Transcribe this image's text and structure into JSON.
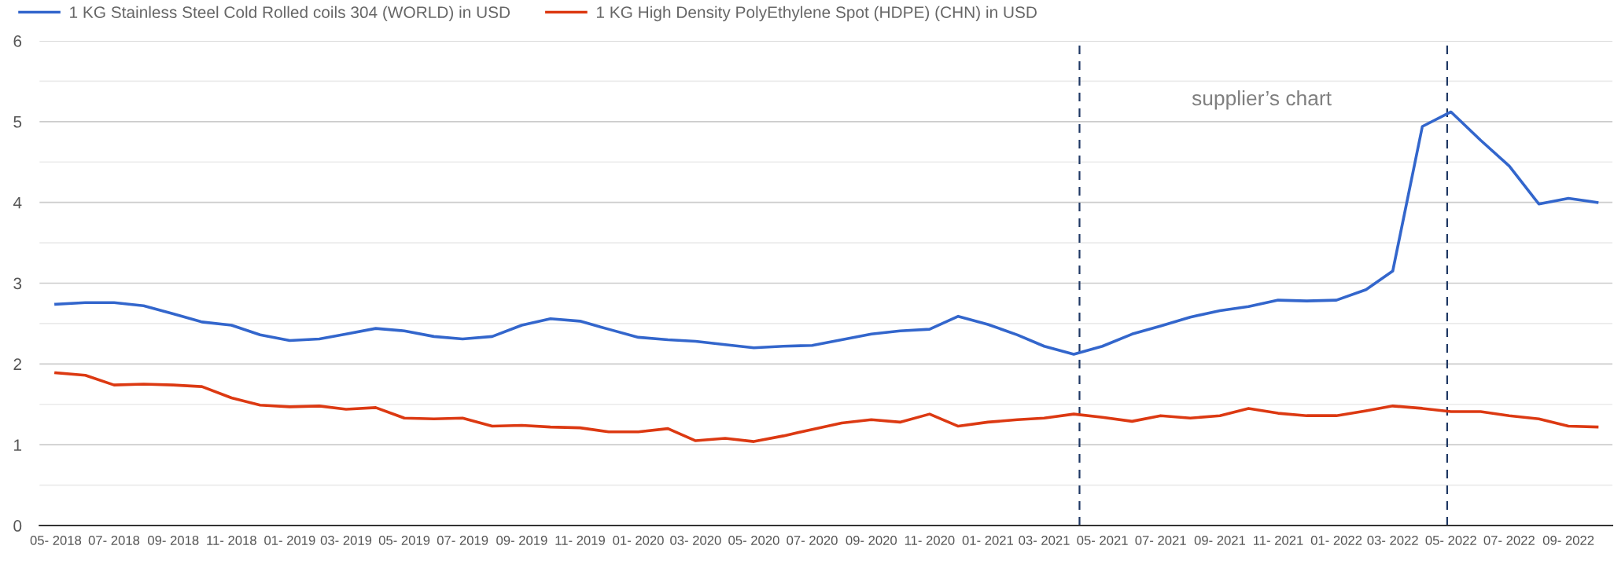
{
  "chart_data": {
    "type": "line",
    "x": [
      "2018-05",
      "2018-06",
      "2018-07",
      "2018-08",
      "2018-09",
      "2018-10",
      "2018-11",
      "2018-12",
      "2019-01",
      "2019-02",
      "2019-03",
      "2019-04",
      "2019-05",
      "2019-06",
      "2019-07",
      "2019-08",
      "2019-09",
      "2019-10",
      "2019-11",
      "2019-12",
      "2020-01",
      "2020-02",
      "2020-03",
      "2020-04",
      "2020-05",
      "2020-06",
      "2020-07",
      "2020-08",
      "2020-09",
      "2020-10",
      "2020-11",
      "2020-12",
      "2021-01",
      "2021-02",
      "2021-03",
      "2021-04",
      "2021-05",
      "2021-06",
      "2021-07",
      "2021-08",
      "2021-09",
      "2021-10",
      "2021-11",
      "2021-12",
      "2022-01",
      "2022-02",
      "2022-03",
      "2022-04",
      "2022-05",
      "2022-06",
      "2022-07",
      "2022-08",
      "2022-09",
      "2022-10"
    ],
    "series": [
      {
        "name": "1 KG Stainless Steel Cold Rolled coils 304 (WORLD) in USD",
        "color": "#3366cc",
        "values": [
          2.74,
          2.76,
          2.76,
          2.72,
          2.62,
          2.52,
          2.48,
          2.36,
          2.29,
          2.31,
          2.37,
          2.44,
          2.41,
          2.34,
          2.31,
          2.34,
          2.48,
          2.56,
          2.53,
          2.43,
          2.33,
          2.3,
          2.28,
          2.24,
          2.2,
          2.22,
          2.23,
          2.3,
          2.37,
          2.41,
          2.43,
          2.59,
          2.49,
          2.36,
          2.22,
          2.12,
          2.22,
          2.37,
          2.47,
          2.58,
          2.66,
          2.71,
          2.79,
          2.78,
          2.79,
          2.92,
          3.15,
          4.94,
          5.12,
          4.77,
          4.45,
          3.98,
          4.05,
          4.0
        ]
      },
      {
        "name": "1 KG High Density PolyEthylene Spot (HDPE) (CHN) in USD",
        "color": "#dc3912",
        "values": [
          1.89,
          1.86,
          1.74,
          1.75,
          1.74,
          1.72,
          1.58,
          1.49,
          1.47,
          1.48,
          1.44,
          1.46,
          1.33,
          1.32,
          1.33,
          1.23,
          1.24,
          1.22,
          1.21,
          1.16,
          1.16,
          1.2,
          1.05,
          1.08,
          1.04,
          1.11,
          1.19,
          1.27,
          1.31,
          1.28,
          1.38,
          1.23,
          1.28,
          1.31,
          1.33,
          1.38,
          1.34,
          1.29,
          1.36,
          1.33,
          1.36,
          1.45,
          1.39,
          1.36,
          1.36,
          1.42,
          1.48,
          1.45,
          1.41,
          1.41,
          1.36,
          1.32,
          1.23,
          1.22
        ]
      }
    ],
    "xlim": [
      "2018-04-14",
      "2022-10-17"
    ],
    "xticks": [
      {
        "value": "2018-05",
        "label": "05- 2018"
      },
      {
        "value": "2018-07",
        "label": "07- 2018"
      },
      {
        "value": "2018-09",
        "label": "09- 2018"
      },
      {
        "value": "2018-11",
        "label": "11- 2018"
      },
      {
        "value": "2019-01",
        "label": "01- 2019"
      },
      {
        "value": "2019-03",
        "label": "03- 2019"
      },
      {
        "value": "2019-05",
        "label": "05- 2019"
      },
      {
        "value": "2019-07",
        "label": "07- 2019"
      },
      {
        "value": "2019-09",
        "label": "09- 2019"
      },
      {
        "value": "2019-11",
        "label": "11- 2019"
      },
      {
        "value": "2020-01",
        "label": "01- 2020"
      },
      {
        "value": "2020-03",
        "label": "03- 2020"
      },
      {
        "value": "2020-05",
        "label": "05- 2020"
      },
      {
        "value": "2020-07",
        "label": "07- 2020"
      },
      {
        "value": "2020-09",
        "label": "09- 2020"
      },
      {
        "value": "2020-11",
        "label": "11- 2020"
      },
      {
        "value": "2021-01",
        "label": "01- 2021"
      },
      {
        "value": "2021-03",
        "label": "03- 2021"
      },
      {
        "value": "2021-05",
        "label": "05- 2021"
      },
      {
        "value": "2021-07",
        "label": "07- 2021"
      },
      {
        "value": "2021-09",
        "label": "09- 2021"
      },
      {
        "value": "2021-11",
        "label": "11- 2021"
      },
      {
        "value": "2022-01",
        "label": "01- 2022"
      },
      {
        "value": "2022-03",
        "label": "03- 2022"
      },
      {
        "value": "2022-05",
        "label": "05- 2022"
      },
      {
        "value": "2022-07",
        "label": "07- 2022"
      },
      {
        "value": "2022-09",
        "label": "09- 2022"
      }
    ],
    "ylim": [
      0,
      6
    ],
    "yticks": [
      0,
      {
        "value": 0.5,
        "label": null
      },
      1,
      {
        "value": 1.5,
        "label": null
      },
      2,
      {
        "value": 2.5,
        "label": null
      },
      3,
      {
        "value": 3.5,
        "label": null
      },
      4,
      {
        "value": 4.5,
        "label": null
      },
      5,
      {
        "value": 5.5,
        "label": null
      },
      6
    ],
    "ref_lines": [
      {
        "axis": "x",
        "value": "2021-04-07",
        "color": "#1f3864",
        "line_style": "dashed"
      },
      {
        "axis": "x",
        "value": "2022-04-27",
        "color": "#1f3864",
        "line_style": "dashed"
      }
    ],
    "annotations": [
      "supplier’s chart"
    ],
    "grid": "y",
    "legend": "top left",
    "marker": "none",
    "line_style": "solid"
  }
}
